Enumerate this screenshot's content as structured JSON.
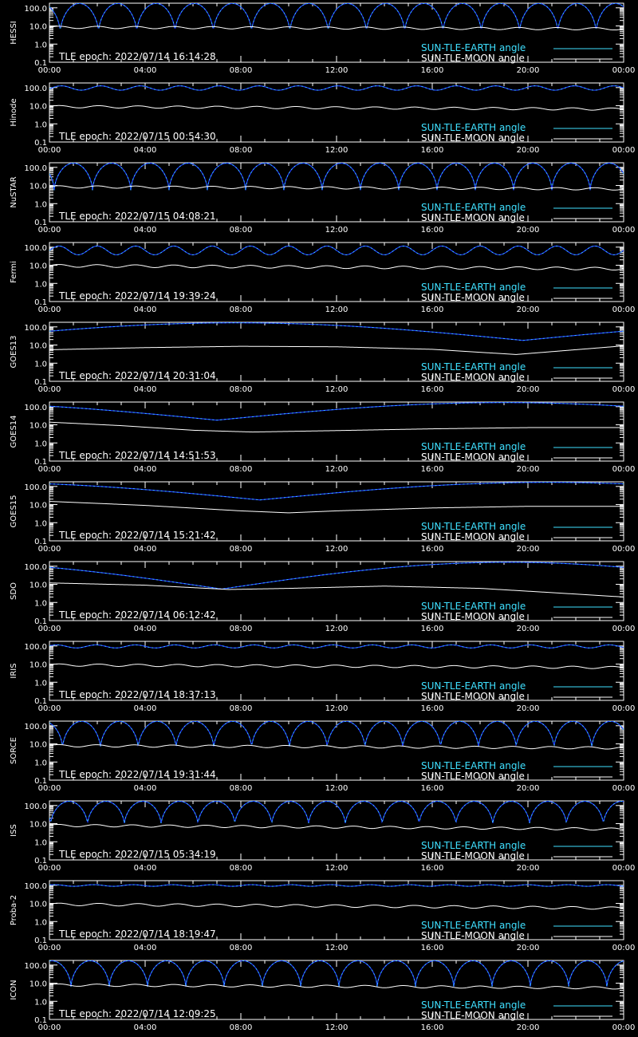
{
  "x_tick_labels": [
    "00:00",
    "04:00",
    "08:00",
    "12:00",
    "16:00",
    "20:00",
    "00:00"
  ],
  "y_tick_labels": [
    "100.0",
    "10.0",
    "1.0",
    "0.1"
  ],
  "legend": {
    "earth_label": "SUN-TLE-EARTH angle",
    "moon_label": "SUN-TLE-MOON angle"
  },
  "colors": {
    "background": "#000000",
    "axes": "#ffffff",
    "earth_curve": "#1f3cff",
    "earth_highlight": "#3fe0ff",
    "moon_curve": "#ffffff",
    "earth_legend_text": "#3fe0ff"
  },
  "chart_data": [
    {
      "type": "line",
      "ylabel": "HESSI",
      "tle_epoch": "TLE epoch: 2022/07/14 16:14:28",
      "xlim": [
        0,
        24
      ],
      "ylim": [
        0.1,
        180
      ],
      "yscale": "log",
      "earth": {
        "mode": "periodic",
        "period_h": 1.6,
        "max": 175,
        "min": 4.5,
        "phase_h": 0.45
      },
      "moon": {
        "mode": "periodic",
        "base": 8.5,
        "amp": 1.2,
        "period_h": 1.6,
        "trend": [
          8.5,
          7.0
        ]
      }
    },
    {
      "type": "line",
      "ylabel": "Hinode",
      "tle_epoch": "TLE epoch: 2022/07/15 00:54:30",
      "xlim": [
        0,
        24
      ],
      "ylim": [
        0.1,
        180
      ],
      "yscale": "log",
      "earth": {
        "mode": "shallow",
        "period_h": 1.65,
        "max": 125,
        "min": 72,
        "phase_h": 0.5
      },
      "moon": {
        "mode": "periodic",
        "base": 9,
        "amp": 1.2,
        "period_h": 1.65,
        "trend": [
          9,
          6.5
        ]
      }
    },
    {
      "type": "line",
      "ylabel": "NuSTAR",
      "tle_epoch": "TLE epoch: 2022/07/15 04:08:21",
      "xlim": [
        0,
        24
      ],
      "ylim": [
        0.1,
        180
      ],
      "yscale": "log",
      "earth": {
        "mode": "periodic",
        "period_h": 1.6,
        "max": 170,
        "min": 5.5,
        "phase_h": 0.2
      },
      "moon": {
        "mode": "periodic",
        "base": 8.5,
        "amp": 1.2,
        "period_h": 1.6,
        "trend": [
          8.5,
          6.5
        ]
      }
    },
    {
      "type": "line",
      "ylabel": "Fermi",
      "tle_epoch": "TLE epoch: 2022/07/14 19:39:24",
      "xlim": [
        0,
        24
      ],
      "ylim": [
        0.1,
        180
      ],
      "yscale": "log",
      "earth": {
        "mode": "shallow",
        "period_h": 1.6,
        "max": 115,
        "min": 38,
        "phase_h": 0.4
      },
      "moon": {
        "mode": "periodic",
        "base": 9.5,
        "amp": 1.4,
        "period_h": 1.6,
        "trend": [
          9.5,
          6.5
        ]
      }
    },
    {
      "type": "line",
      "ylabel": "GOES13",
      "tle_epoch": "TLE epoch: 2022/07/14 20:31:04",
      "xlim": [
        0,
        24
      ],
      "ylim": [
        0.1,
        180
      ],
      "yscale": "log",
      "earth": {
        "mode": "geo",
        "min_t": 19.8,
        "max_val": 168,
        "min_val": 18
      },
      "moon": {
        "mode": "points",
        "x": [
          0,
          4,
          8,
          12,
          16,
          19.5,
          24
        ],
        "y": [
          5.5,
          7.2,
          8.5,
          8.0,
          5.8,
          3.0,
          9.0
        ]
      }
    },
    {
      "type": "line",
      "ylabel": "GOES14",
      "tle_epoch": "TLE epoch: 2022/07/14 14:51:53",
      "xlim": [
        0,
        24
      ],
      "ylim": [
        0.1,
        180
      ],
      "yscale": "log",
      "earth": {
        "mode": "geo",
        "min_t": 7.0,
        "max_val": 168,
        "min_val": 18
      },
      "moon": {
        "mode": "points",
        "x": [
          0,
          3,
          6,
          8.5,
          12,
          16,
          20,
          24
        ],
        "y": [
          14,
          9,
          5.0,
          4.0,
          4.8,
          6.0,
          7.0,
          7.0
        ]
      }
    },
    {
      "type": "line",
      "ylabel": "GOES15",
      "tle_epoch": "TLE epoch: 2022/07/14 15:21:42",
      "xlim": [
        0,
        24
      ],
      "ylim": [
        0.1,
        180
      ],
      "yscale": "log",
      "earth": {
        "mode": "geo",
        "min_t": 8.8,
        "max_val": 168,
        "min_val": 18
      },
      "moon": {
        "mode": "points",
        "x": [
          0,
          4,
          8,
          10,
          12,
          16,
          20,
          24
        ],
        "y": [
          15,
          9,
          4.5,
          3.5,
          4.5,
          6.5,
          8,
          8
        ]
      }
    },
    {
      "type": "line",
      "ylabel": "SDO",
      "tle_epoch": "TLE epoch: 2022/07/14 06:12:42",
      "xlim": [
        0,
        24
      ],
      "ylim": [
        0.1,
        180
      ],
      "yscale": "log",
      "earth": {
        "mode": "geo",
        "min_t": 7.2,
        "max_val": 165,
        "min_val": 5.5
      },
      "moon": {
        "mode": "points",
        "x": [
          0,
          4,
          7.5,
          10,
          14,
          18,
          21,
          24
        ],
        "y": [
          12,
          9,
          5.2,
          6,
          8,
          6,
          3.5,
          2.0
        ]
      }
    },
    {
      "type": "line",
      "ylabel": "IRIS",
      "tle_epoch": "TLE epoch: 2022/07/14 18:37:13",
      "xlim": [
        0,
        24
      ],
      "ylim": [
        0.1,
        180
      ],
      "yscale": "log",
      "earth": {
        "mode": "shallow",
        "period_h": 1.65,
        "max": 115,
        "min": 78,
        "phase_h": 0.3
      },
      "moon": {
        "mode": "periodic",
        "base": 9,
        "amp": 1.2,
        "period_h": 1.65,
        "trend": [
          9,
          6.5
        ]
      }
    },
    {
      "type": "line",
      "ylabel": "SORCE",
      "tle_epoch": "TLE epoch: 2022/07/14 19:31:44",
      "xlim": [
        0,
        24
      ],
      "ylim": [
        0.1,
        180
      ],
      "yscale": "log",
      "earth": {
        "mode": "periodic",
        "period_h": 1.58,
        "max": 175,
        "min": 6.0,
        "phase_h": 0.55
      },
      "moon": {
        "mode": "periodic",
        "base": 8,
        "amp": 1.2,
        "period_h": 1.58,
        "trend": [
          8,
          6
        ]
      }
    },
    {
      "type": "line",
      "ylabel": "ISS",
      "tle_epoch": "TLE epoch: 2022/07/15 05:34:19",
      "xlim": [
        0,
        24
      ],
      "ylim": [
        0.1,
        180
      ],
      "yscale": "log",
      "earth": {
        "mode": "periodic",
        "period_h": 1.54,
        "max": 170,
        "min": 9.0,
        "phase_h": 0.05
      },
      "moon": {
        "mode": "periodic",
        "base": 8,
        "amp": 1.2,
        "period_h": 1.54,
        "trend": [
          8,
          5
        ]
      }
    },
    {
      "type": "line",
      "ylabel": "Proba-2",
      "tle_epoch": "TLE epoch: 2022/07/14 18:19:47",
      "xlim": [
        0,
        24
      ],
      "ylim": [
        0.1,
        180
      ],
      "yscale": "log",
      "earth": {
        "mode": "shallow",
        "period_h": 1.65,
        "max": 108,
        "min": 88,
        "phase_h": 0.2
      },
      "moon": {
        "mode": "periodic",
        "base": 9,
        "amp": 1.3,
        "period_h": 1.65,
        "trend": [
          9,
          5.5
        ]
      }
    },
    {
      "type": "line",
      "ylabel": "ICON",
      "tle_epoch": "TLE epoch: 2022/07/14 12:09:25",
      "xlim": [
        0,
        24
      ],
      "ylim": [
        0.1,
        180
      ],
      "yscale": "log",
      "earth": {
        "mode": "periodic",
        "period_h": 1.6,
        "max": 172,
        "min": 6.5,
        "phase_h": 0.9
      },
      "moon": {
        "mode": "periodic",
        "base": 8,
        "amp": 1.2,
        "period_h": 1.6,
        "trend": [
          8,
          5.5
        ]
      }
    }
  ]
}
